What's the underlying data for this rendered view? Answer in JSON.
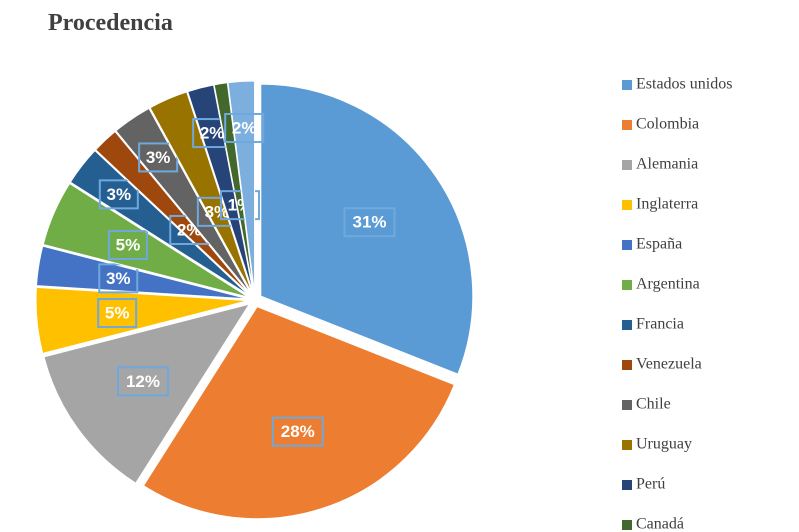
{
  "chart_data": {
    "type": "pie",
    "title": "Procedencia",
    "categories": [
      "Estados unidos",
      "Colombia",
      "Alemania",
      "Inglaterra",
      "España",
      "Argentina",
      "Francia",
      "Venezuela",
      "Chile",
      "Uruguay",
      "Perú",
      "Canadá",
      null
    ],
    "values": [
      31,
      28,
      12,
      5,
      3,
      5,
      3,
      2,
      3,
      3,
      2,
      1,
      2
    ],
    "value_labels": [
      "31%",
      "28%",
      "12%",
      "5%",
      "3%",
      "5%",
      "3%",
      "2%",
      "3%",
      "3%",
      "2%",
      "1%",
      "2%"
    ],
    "colors": [
      "#5b9bd5",
      "#ed7d31",
      "#a5a5a5",
      "#ffc000",
      "#4472c4",
      "#70ad47",
      "#255e91",
      "#9e480e",
      "#636363",
      "#997300",
      "#264478",
      "#43682b",
      "#7cafdd"
    ],
    "legend": "right"
  }
}
